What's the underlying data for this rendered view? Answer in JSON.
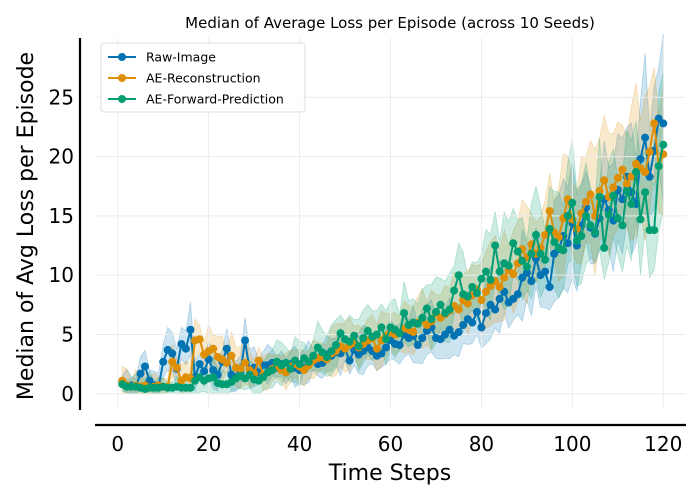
{
  "chart_data": {
    "type": "line",
    "title": "Median of Average Loss per Episode (across 10 Seeds)",
    "xlabel": "Time Steps",
    "ylabel": "Median of Avg Loss per Episode",
    "xlim": [
      -5,
      125
    ],
    "ylim": [
      -1.2,
      30
    ],
    "xticks": [
      0,
      20,
      40,
      60,
      80,
      100,
      120
    ],
    "yticks": [
      0,
      5,
      10,
      15,
      20,
      25
    ],
    "grid": true,
    "legend": "top-left",
    "series": [
      {
        "name": "Raw-Image",
        "color": "#0173b2",
        "x": [
          1,
          2,
          3,
          4,
          5,
          6,
          7,
          8,
          9,
          10,
          11,
          12,
          13,
          14,
          15,
          16,
          17,
          18,
          19,
          20,
          21,
          22,
          23,
          24,
          25,
          26,
          27,
          28,
          29,
          30,
          31,
          32,
          33,
          34,
          35,
          36,
          37,
          38,
          39,
          40,
          41,
          42,
          43,
          44,
          45,
          46,
          47,
          48,
          49,
          50,
          51,
          52,
          53,
          54,
          55,
          56,
          57,
          58,
          59,
          60,
          61,
          62,
          63,
          64,
          65,
          66,
          67,
          68,
          69,
          70,
          71,
          72,
          73,
          74,
          75,
          76,
          77,
          78,
          79,
          80,
          81,
          82,
          83,
          84,
          85,
          86,
          87,
          88,
          89,
          90,
          91,
          92,
          93,
          94,
          95,
          96,
          97,
          98,
          99,
          100,
          101,
          102,
          103,
          104,
          105,
          106,
          107,
          108,
          109,
          110,
          111,
          112,
          113,
          114,
          115,
          116,
          117,
          118,
          119,
          120
        ],
        "values": [
          1.0,
          0.7,
          0.7,
          0.6,
          1.7,
          2.3,
          1.1,
          0.7,
          0.6,
          2.7,
          3.7,
          3.4,
          2.1,
          4.2,
          3.8,
          5.4,
          1.4,
          2.5,
          1.9,
          2.9,
          2.0,
          1.6,
          2.7,
          3.8,
          1.6,
          1.4,
          1.8,
          4.5,
          2.0,
          2.2,
          1.8,
          2.4,
          2.4,
          2.6,
          2.2,
          2.5,
          1.8,
          2.5,
          2.2,
          2.0,
          2.2,
          2.6,
          2.8,
          2.5,
          2.6,
          3.3,
          3.2,
          3.5,
          3.4,
          3.8,
          2.8,
          3.7,
          3.3,
          3.6,
          3.9,
          3.6,
          3.2,
          3.4,
          3.9,
          4.5,
          4.2,
          4.1,
          5.0,
          4.7,
          4.9,
          4.1,
          4.7,
          5.3,
          5.6,
          4.7,
          4.6,
          5.0,
          5.4,
          4.9,
          5.2,
          5.8,
          6.3,
          6.0,
          6.9,
          5.6,
          6.8,
          7.5,
          7.1,
          8.0,
          8.6,
          7.7,
          8.0,
          8.4,
          9.8,
          10.2,
          9.5,
          11.4,
          10.0,
          10.3,
          9.0,
          11.8,
          12.2,
          13.3,
          12.7,
          14.4,
          12.5,
          14.2,
          15.7,
          14.0,
          13.5,
          14.8,
          16.4,
          15.5,
          14.6,
          17.2,
          16.4,
          18.3,
          17.0,
          16.0,
          19.8,
          21.6,
          18.3,
          20.5,
          23.2,
          22.8
        ]
      },
      {
        "name": "AE-Reconstruction",
        "color": "#de8f05",
        "x": [
          1,
          2,
          3,
          4,
          5,
          6,
          7,
          8,
          9,
          10,
          11,
          12,
          13,
          14,
          15,
          16,
          17,
          18,
          19,
          20,
          21,
          22,
          23,
          24,
          25,
          26,
          27,
          28,
          29,
          30,
          31,
          32,
          33,
          34,
          35,
          36,
          37,
          38,
          39,
          40,
          41,
          42,
          43,
          44,
          45,
          46,
          47,
          48,
          49,
          50,
          51,
          52,
          53,
          54,
          55,
          56,
          57,
          58,
          59,
          60,
          61,
          62,
          63,
          64,
          65,
          66,
          67,
          68,
          69,
          70,
          71,
          72,
          73,
          74,
          75,
          76,
          77,
          78,
          79,
          80,
          81,
          82,
          83,
          84,
          85,
          86,
          87,
          88,
          89,
          90,
          91,
          92,
          93,
          94,
          95,
          96,
          97,
          98,
          99,
          100,
          101,
          102,
          103,
          104,
          105,
          106,
          107,
          108,
          109,
          110,
          111,
          112,
          113,
          114,
          115,
          116,
          117,
          118,
          119,
          120
        ],
        "values": [
          1.1,
          0.7,
          0.6,
          0.7,
          0.6,
          0.7,
          0.5,
          0.6,
          0.7,
          0.6,
          0.6,
          2.7,
          2.2,
          1.1,
          1.4,
          1.3,
          4.5,
          4.6,
          3.3,
          3.6,
          3.8,
          3.1,
          2.9,
          2.6,
          3.2,
          2.2,
          2.1,
          2.6,
          2.0,
          1.7,
          2.8,
          1.6,
          1.8,
          2.1,
          2.3,
          2.0,
          1.8,
          2.3,
          2.5,
          2.3,
          2.0,
          2.4,
          2.8,
          3.0,
          3.1,
          2.9,
          3.4,
          3.6,
          4.0,
          3.8,
          4.1,
          4.3,
          3.9,
          4.2,
          4.5,
          4.7,
          3.8,
          4.5,
          4.9,
          5.2,
          5.0,
          5.1,
          5.5,
          5.4,
          5.2,
          6.0,
          6.2,
          5.8,
          6.1,
          6.8,
          6.4,
          6.7,
          7.0,
          7.4,
          7.1,
          7.9,
          7.6,
          8.3,
          8.8,
          7.9,
          8.6,
          9.1,
          9.5,
          9.0,
          9.8,
          10.4,
          10.1,
          11.0,
          12.2,
          11.5,
          12.6,
          11.8,
          12.3,
          13.4,
          15.4,
          13.6,
          13.2,
          14.8,
          16.4,
          14.7,
          13.9,
          15.2,
          16.2,
          16.8,
          15.0,
          17.1,
          18.0,
          16.6,
          17.4,
          18.2,
          18.9,
          17.7,
          18.3,
          19.4,
          19.0,
          18.7,
          20.4,
          22.8,
          19.2,
          20.2
        ]
      },
      {
        "name": "AE-Forward-Prediction",
        "color": "#029e73",
        "x": [
          1,
          2,
          3,
          4,
          5,
          6,
          7,
          8,
          9,
          10,
          11,
          12,
          13,
          14,
          15,
          16,
          17,
          18,
          19,
          20,
          21,
          22,
          23,
          24,
          25,
          26,
          27,
          28,
          29,
          30,
          31,
          32,
          33,
          34,
          35,
          36,
          37,
          38,
          39,
          40,
          41,
          42,
          43,
          44,
          45,
          46,
          47,
          48,
          49,
          50,
          51,
          52,
          53,
          54,
          55,
          56,
          57,
          58,
          59,
          60,
          61,
          62,
          63,
          64,
          65,
          66,
          67,
          68,
          69,
          70,
          71,
          72,
          73,
          74,
          75,
          76,
          77,
          78,
          79,
          80,
          81,
          82,
          83,
          84,
          85,
          86,
          87,
          88,
          89,
          90,
          91,
          92,
          93,
          94,
          95,
          96,
          97,
          98,
          99,
          100,
          101,
          102,
          103,
          104,
          105,
          106,
          107,
          108,
          109,
          110,
          111,
          112,
          113,
          114,
          115,
          116,
          117,
          118,
          119,
          120
        ],
        "values": [
          0.8,
          0.6,
          0.6,
          0.6,
          0.5,
          0.4,
          0.5,
          0.5,
          0.5,
          0.6,
          0.5,
          0.5,
          0.6,
          0.5,
          0.5,
          0.5,
          1.1,
          1.4,
          1.1,
          1.3,
          1.4,
          0.9,
          0.8,
          0.8,
          1.0,
          1.3,
          1.5,
          1.3,
          1.6,
          1.2,
          1.1,
          1.4,
          1.8,
          2.0,
          2.7,
          2.4,
          2.6,
          2.1,
          2.8,
          2.5,
          3.0,
          2.7,
          3.2,
          3.9,
          3.5,
          3.1,
          3.6,
          4.1,
          5.1,
          4.6,
          4.4,
          4.9,
          4.0,
          4.7,
          5.3,
          4.8,
          5.0,
          5.6,
          4.6,
          5.6,
          5.4,
          5.1,
          6.8,
          5.8,
          6.0,
          5.9,
          6.4,
          7.2,
          6.3,
          6.9,
          7.5,
          6.8,
          7.1,
          8.7,
          10.0,
          8.4,
          8.2,
          9.0,
          8.5,
          9.7,
          10.3,
          9.6,
          12.5,
          10.3,
          11.0,
          10.8,
          12.7,
          12.0,
          11.2,
          10.7,
          11.8,
          13.4,
          11.8,
          11.3,
          13.9,
          12.8,
          12.3,
          12.1,
          15.0,
          16.1,
          12.9,
          13.3,
          15.0,
          14.2,
          13.6,
          16.6,
          12.3,
          15.1,
          16.7,
          14.8,
          14.2,
          17.1,
          16.0,
          18.7,
          14.7,
          17.0,
          13.8,
          13.8,
          19.2,
          21.0
        ]
      }
    ]
  }
}
